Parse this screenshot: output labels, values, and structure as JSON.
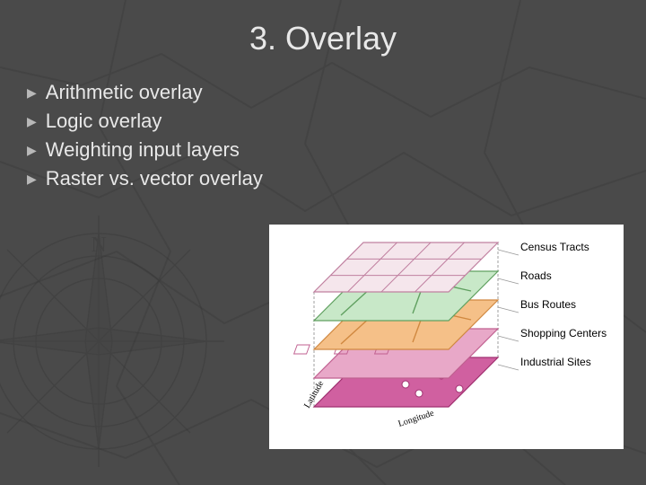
{
  "title": "3. Overlay",
  "bullets": [
    "Arithmetic overlay",
    "Logic overlay",
    "Weighting input layers",
    "Raster vs. vector overlay"
  ],
  "diagram": {
    "background": "#ffffff",
    "layers": [
      {
        "label": "Census Tracts",
        "fill": "#f5e6ec",
        "stroke": "#c080a0",
        "hasGrid": true
      },
      {
        "label": "Roads",
        "fill": "#c8e8c8",
        "stroke": "#60a060",
        "hasLines": true
      },
      {
        "label": "Bus Routes",
        "fill": "#f5c088",
        "stroke": "#d08840",
        "hasLines": true
      },
      {
        "label": "Shopping Centers",
        "fill": "#e8a8c8",
        "stroke": "#c06090",
        "hasSquares": true
      },
      {
        "label": "Industrial Sites",
        "fill": "#d060a0",
        "stroke": "#a03070",
        "hasDots": true
      }
    ],
    "layerWidth": 150,
    "layerDepth": 55,
    "layerGap": 32,
    "shearX": 55,
    "axisLabels": {
      "x": "Longitude",
      "y": "Latitude"
    },
    "labelFont": "Comic Sans MS"
  },
  "colors": {
    "slideBg": "#4a4a4a",
    "textLight": "#e8e8e8",
    "bulletIcon": "#b8b8b8"
  }
}
